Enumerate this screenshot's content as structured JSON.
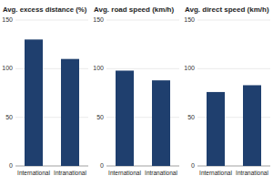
{
  "chart_data": [
    {
      "type": "bar",
      "title": "Avg. excess distance (%)",
      "categories": [
        "International",
        "Intranational"
      ],
      "values": [
        130,
        110
      ],
      "color": "#1f3f6e",
      "ylim": [
        0,
        150
      ],
      "yticks": [
        0,
        50,
        100,
        150
      ],
      "grid": true
    },
    {
      "type": "bar",
      "title": "Avg. road speed (km/h)",
      "categories": [
        "International",
        "Intranational"
      ],
      "values": [
        98,
        88
      ],
      "color": "#1f3f6e",
      "ylim": [
        0,
        150
      ],
      "yticks": [
        0,
        50,
        100,
        150
      ],
      "grid": true
    },
    {
      "type": "bar",
      "title": "Avg. direct speed (km/h)",
      "categories": [
        "International",
        "Intranational"
      ],
      "values": [
        76,
        83
      ],
      "color": "#1f3f6e",
      "ylim": [
        0,
        150
      ],
      "yticks": [
        0,
        50,
        100,
        150
      ],
      "grid": true
    }
  ]
}
